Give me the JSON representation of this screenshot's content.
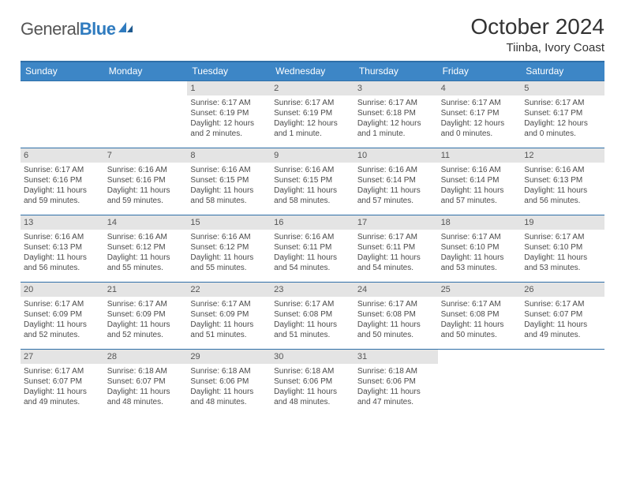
{
  "brand": {
    "name1": "General",
    "name2": "Blue"
  },
  "title": "October 2024",
  "location": "Tiinba, Ivory Coast",
  "colors": {
    "header_bg": "#3d86c6",
    "header_border": "#2f6fa8",
    "daynum_bg": "#e4e4e4",
    "text": "#4a4a4a"
  },
  "day_headers": [
    "Sunday",
    "Monday",
    "Tuesday",
    "Wednesday",
    "Thursday",
    "Friday",
    "Saturday"
  ],
  "weeks": [
    [
      null,
      null,
      {
        "n": "1",
        "sr": "Sunrise: 6:17 AM",
        "ss": "Sunset: 6:19 PM",
        "dl": "Daylight: 12 hours and 2 minutes."
      },
      {
        "n": "2",
        "sr": "Sunrise: 6:17 AM",
        "ss": "Sunset: 6:19 PM",
        "dl": "Daylight: 12 hours and 1 minute."
      },
      {
        "n": "3",
        "sr": "Sunrise: 6:17 AM",
        "ss": "Sunset: 6:18 PM",
        "dl": "Daylight: 12 hours and 1 minute."
      },
      {
        "n": "4",
        "sr": "Sunrise: 6:17 AM",
        "ss": "Sunset: 6:17 PM",
        "dl": "Daylight: 12 hours and 0 minutes."
      },
      {
        "n": "5",
        "sr": "Sunrise: 6:17 AM",
        "ss": "Sunset: 6:17 PM",
        "dl": "Daylight: 12 hours and 0 minutes."
      }
    ],
    [
      {
        "n": "6",
        "sr": "Sunrise: 6:17 AM",
        "ss": "Sunset: 6:16 PM",
        "dl": "Daylight: 11 hours and 59 minutes."
      },
      {
        "n": "7",
        "sr": "Sunrise: 6:16 AM",
        "ss": "Sunset: 6:16 PM",
        "dl": "Daylight: 11 hours and 59 minutes."
      },
      {
        "n": "8",
        "sr": "Sunrise: 6:16 AM",
        "ss": "Sunset: 6:15 PM",
        "dl": "Daylight: 11 hours and 58 minutes."
      },
      {
        "n": "9",
        "sr": "Sunrise: 6:16 AM",
        "ss": "Sunset: 6:15 PM",
        "dl": "Daylight: 11 hours and 58 minutes."
      },
      {
        "n": "10",
        "sr": "Sunrise: 6:16 AM",
        "ss": "Sunset: 6:14 PM",
        "dl": "Daylight: 11 hours and 57 minutes."
      },
      {
        "n": "11",
        "sr": "Sunrise: 6:16 AM",
        "ss": "Sunset: 6:14 PM",
        "dl": "Daylight: 11 hours and 57 minutes."
      },
      {
        "n": "12",
        "sr": "Sunrise: 6:16 AM",
        "ss": "Sunset: 6:13 PM",
        "dl": "Daylight: 11 hours and 56 minutes."
      }
    ],
    [
      {
        "n": "13",
        "sr": "Sunrise: 6:16 AM",
        "ss": "Sunset: 6:13 PM",
        "dl": "Daylight: 11 hours and 56 minutes."
      },
      {
        "n": "14",
        "sr": "Sunrise: 6:16 AM",
        "ss": "Sunset: 6:12 PM",
        "dl": "Daylight: 11 hours and 55 minutes."
      },
      {
        "n": "15",
        "sr": "Sunrise: 6:16 AM",
        "ss": "Sunset: 6:12 PM",
        "dl": "Daylight: 11 hours and 55 minutes."
      },
      {
        "n": "16",
        "sr": "Sunrise: 6:16 AM",
        "ss": "Sunset: 6:11 PM",
        "dl": "Daylight: 11 hours and 54 minutes."
      },
      {
        "n": "17",
        "sr": "Sunrise: 6:17 AM",
        "ss": "Sunset: 6:11 PM",
        "dl": "Daylight: 11 hours and 54 minutes."
      },
      {
        "n": "18",
        "sr": "Sunrise: 6:17 AM",
        "ss": "Sunset: 6:10 PM",
        "dl": "Daylight: 11 hours and 53 minutes."
      },
      {
        "n": "19",
        "sr": "Sunrise: 6:17 AM",
        "ss": "Sunset: 6:10 PM",
        "dl": "Daylight: 11 hours and 53 minutes."
      }
    ],
    [
      {
        "n": "20",
        "sr": "Sunrise: 6:17 AM",
        "ss": "Sunset: 6:09 PM",
        "dl": "Daylight: 11 hours and 52 minutes."
      },
      {
        "n": "21",
        "sr": "Sunrise: 6:17 AM",
        "ss": "Sunset: 6:09 PM",
        "dl": "Daylight: 11 hours and 52 minutes."
      },
      {
        "n": "22",
        "sr": "Sunrise: 6:17 AM",
        "ss": "Sunset: 6:09 PM",
        "dl": "Daylight: 11 hours and 51 minutes."
      },
      {
        "n": "23",
        "sr": "Sunrise: 6:17 AM",
        "ss": "Sunset: 6:08 PM",
        "dl": "Daylight: 11 hours and 51 minutes."
      },
      {
        "n": "24",
        "sr": "Sunrise: 6:17 AM",
        "ss": "Sunset: 6:08 PM",
        "dl": "Daylight: 11 hours and 50 minutes."
      },
      {
        "n": "25",
        "sr": "Sunrise: 6:17 AM",
        "ss": "Sunset: 6:08 PM",
        "dl": "Daylight: 11 hours and 50 minutes."
      },
      {
        "n": "26",
        "sr": "Sunrise: 6:17 AM",
        "ss": "Sunset: 6:07 PM",
        "dl": "Daylight: 11 hours and 49 minutes."
      }
    ],
    [
      {
        "n": "27",
        "sr": "Sunrise: 6:17 AM",
        "ss": "Sunset: 6:07 PM",
        "dl": "Daylight: 11 hours and 49 minutes."
      },
      {
        "n": "28",
        "sr": "Sunrise: 6:18 AM",
        "ss": "Sunset: 6:07 PM",
        "dl": "Daylight: 11 hours and 48 minutes."
      },
      {
        "n": "29",
        "sr": "Sunrise: 6:18 AM",
        "ss": "Sunset: 6:06 PM",
        "dl": "Daylight: 11 hours and 48 minutes."
      },
      {
        "n": "30",
        "sr": "Sunrise: 6:18 AM",
        "ss": "Sunset: 6:06 PM",
        "dl": "Daylight: 11 hours and 48 minutes."
      },
      {
        "n": "31",
        "sr": "Sunrise: 6:18 AM",
        "ss": "Sunset: 6:06 PM",
        "dl": "Daylight: 11 hours and 47 minutes."
      },
      null,
      null
    ]
  ]
}
